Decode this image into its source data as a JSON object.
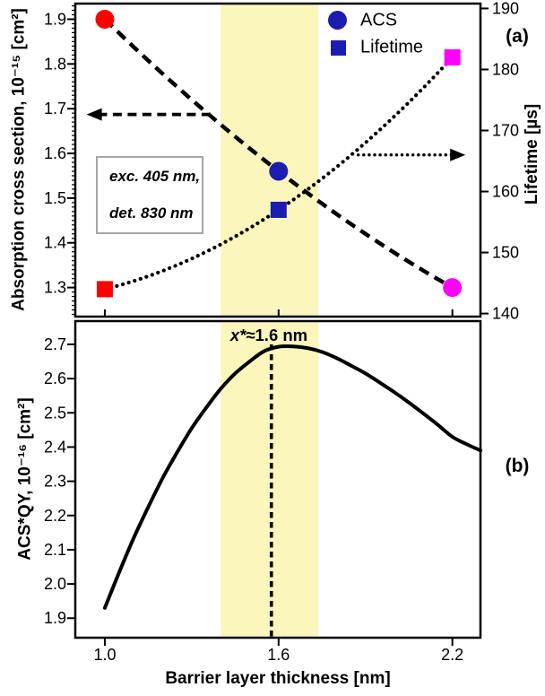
{
  "colors": {
    "red": "#FF0000",
    "blue": "#1C1CB0",
    "magenta": "#FF00FF",
    "band": "#FAF6BC",
    "axis": "#000000",
    "box_border": "#A6A6A6"
  },
  "chart_data": [
    {
      "id": "panel_a",
      "type": "scatter",
      "panel_label": "(a)",
      "x": [
        1.0,
        1.6,
        2.2
      ],
      "series": [
        {
          "name": "ACS",
          "axis": "left",
          "marker": "circle",
          "trend_style": "dashed",
          "values": [
            1.9,
            1.56,
            1.3
          ],
          "marker_colors": [
            "#FF0000",
            "#1C1CB0",
            "#FF00FF"
          ]
        },
        {
          "name": "Lifetime",
          "axis": "right",
          "marker": "square",
          "trend_style": "dotted",
          "values": [
            144,
            157,
            182
          ],
          "marker_colors": [
            "#FF0000",
            "#1C1CB0",
            "#FF00FF"
          ]
        }
      ],
      "left_axis": {
        "title": "Absorption cross section, 10⁻¹⁵ [cm²]",
        "range": [
          1.235,
          1.935
        ],
        "tick_labels": [
          "1.3",
          "1.4",
          "1.5",
          "1.6",
          "1.7",
          "1.8",
          "1.9"
        ],
        "minor_step": 0.01
      },
      "right_axis": {
        "title": "Lifetime [µs]",
        "range": [
          139.5,
          190.8
        ],
        "tick_labels": [
          "140",
          "150",
          "160",
          "170",
          "180",
          "190"
        ]
      },
      "x_axis": {
        "range": [
          0.898,
          2.297
        ],
        "tick_values": [
          1.0,
          1.6,
          2.2
        ],
        "labels_shown": false
      },
      "legend": {
        "position": "top-center",
        "marker_color": "#1C1CB0",
        "items": [
          {
            "label": "ACS",
            "marker": "circle"
          },
          {
            "label": "Lifetime",
            "marker": "square"
          }
        ]
      },
      "annotation_box": {
        "lines": [
          "exc. 405 nm,",
          "det. 830 nm"
        ]
      },
      "arrows": [
        {
          "style": "dashed",
          "direction": "left",
          "axis": "left",
          "y_value": 1.687,
          "x_start": 1.365,
          "x_tip": 0.937
        },
        {
          "style": "dotted",
          "direction": "right",
          "axis": "right",
          "y_value": 166.0,
          "x_start": 1.875,
          "x_tip": 2.245
        }
      ],
      "band": {
        "x_from": 1.4,
        "x_to": 1.737,
        "color": "#FAF6BC"
      }
    },
    {
      "id": "panel_b",
      "type": "line",
      "panel_label": "(b)",
      "curve": {
        "x": [
          1.0,
          1.05,
          1.1,
          1.15,
          1.2,
          1.25,
          1.3,
          1.35,
          1.4,
          1.45,
          1.5,
          1.55,
          1.6,
          1.65,
          1.7,
          1.75,
          1.8,
          1.85,
          1.9,
          1.95,
          2.0,
          2.05,
          2.1,
          2.15,
          2.2,
          2.25,
          2.297
        ],
        "y": [
          1.93,
          2.035,
          2.135,
          2.225,
          2.31,
          2.385,
          2.455,
          2.515,
          2.57,
          2.615,
          2.65,
          2.68,
          2.693,
          2.694,
          2.689,
          2.678,
          2.66,
          2.638,
          2.615,
          2.588,
          2.56,
          2.53,
          2.498,
          2.465,
          2.43,
          2.408,
          2.39
        ]
      },
      "peak_annotation": {
        "var": "x*",
        "rest": "≈1.6 nm",
        "x_line": 1.575,
        "line_y_top": 2.7
      },
      "left_axis": {
        "title": "ACS*QY, 10⁻¹⁶ [cm²]",
        "range": [
          1.843,
          2.768
        ],
        "tick_labels": [
          "1.9",
          "2.0",
          "2.1",
          "2.2",
          "2.3",
          "2.4",
          "2.5",
          "2.6",
          "2.7"
        ]
      },
      "x_axis": {
        "title": "Barrier layer thickness [nm]",
        "range": [
          0.898,
          2.297
        ],
        "tick_values": [
          1.0,
          1.6,
          2.2
        ],
        "tick_labels": [
          "1.0",
          "1.6",
          "2.2"
        ]
      },
      "band": {
        "x_from": 1.4,
        "x_to": 1.737,
        "color": "#FAF6BC"
      }
    }
  ]
}
